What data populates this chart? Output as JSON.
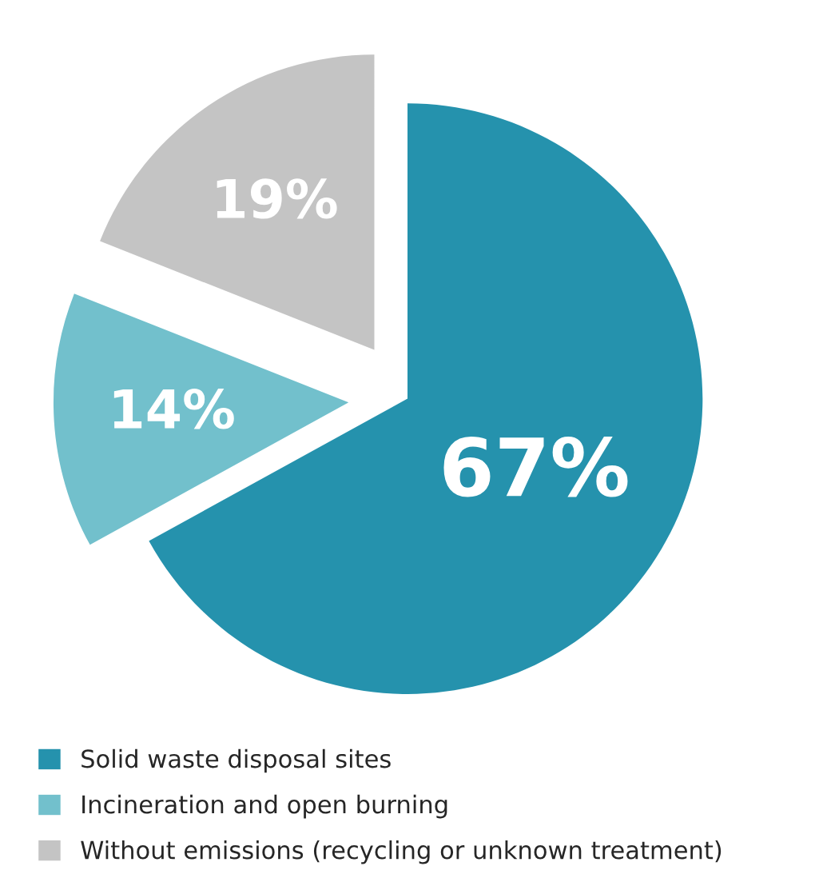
{
  "chart_data": {
    "type": "pie",
    "categories": [
      "Solid waste disposal sites",
      "Incineration and open burning",
      "Without emissions (recycling or unknown treatment)"
    ],
    "values": [
      67,
      14,
      19
    ],
    "value_labels": [
      "67%",
      "14%",
      "19%"
    ],
    "colors": [
      "#2592ad",
      "#72c0cc",
      "#c4c4c4"
    ],
    "legend": "bottom"
  }
}
